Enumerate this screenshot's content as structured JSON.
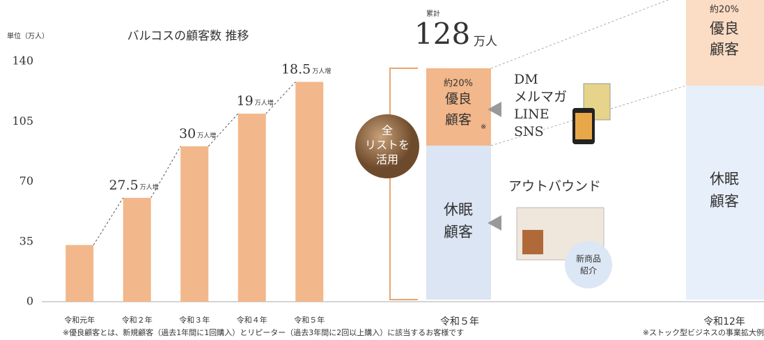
{
  "chart_data": {
    "type": "bar",
    "title": "バルコスの顧客数 推移",
    "unit_label": "単位（万人）",
    "categories": [
      "令和元年",
      "令和２年",
      "令和３年",
      "令和４年",
      "令和５年"
    ],
    "values": [
      33,
      60.5,
      90.5,
      109.5,
      128
    ],
    "color": "#f2b78a",
    "ylim": [
      0,
      140
    ],
    "yticks": [
      0,
      35,
      70,
      105,
      140
    ],
    "increments": [
      27.5,
      30,
      19,
      18.5
    ],
    "increment_unit": "万人増",
    "footnote": "※優良顧客とは、新規顧客（過去1年間に1回購入）とリピーター（過去3年間に2回以上購入）に該当するお客様です"
  },
  "panel_now": {
    "total_label": "累計",
    "total": 128,
    "total_unit": "万人",
    "share": "約20%",
    "loyal": "優良顧客",
    "mark": "※",
    "channels": [
      "DM",
      "メルマガ",
      "LINE",
      "SNS"
    ],
    "circle": [
      "全",
      "リストを",
      "活用"
    ],
    "outbound": "アウトバウンド",
    "dormant": "休眠顧客",
    "badge": [
      "新商品",
      "紹介"
    ],
    "label": "令和５年"
  },
  "panel_future": {
    "share": "約20%",
    "loyal": "優良顧客",
    "dormant": "休眠顧客",
    "label": "令和12年",
    "footnote": "※ストック型ビジネスの事業拡大例"
  }
}
